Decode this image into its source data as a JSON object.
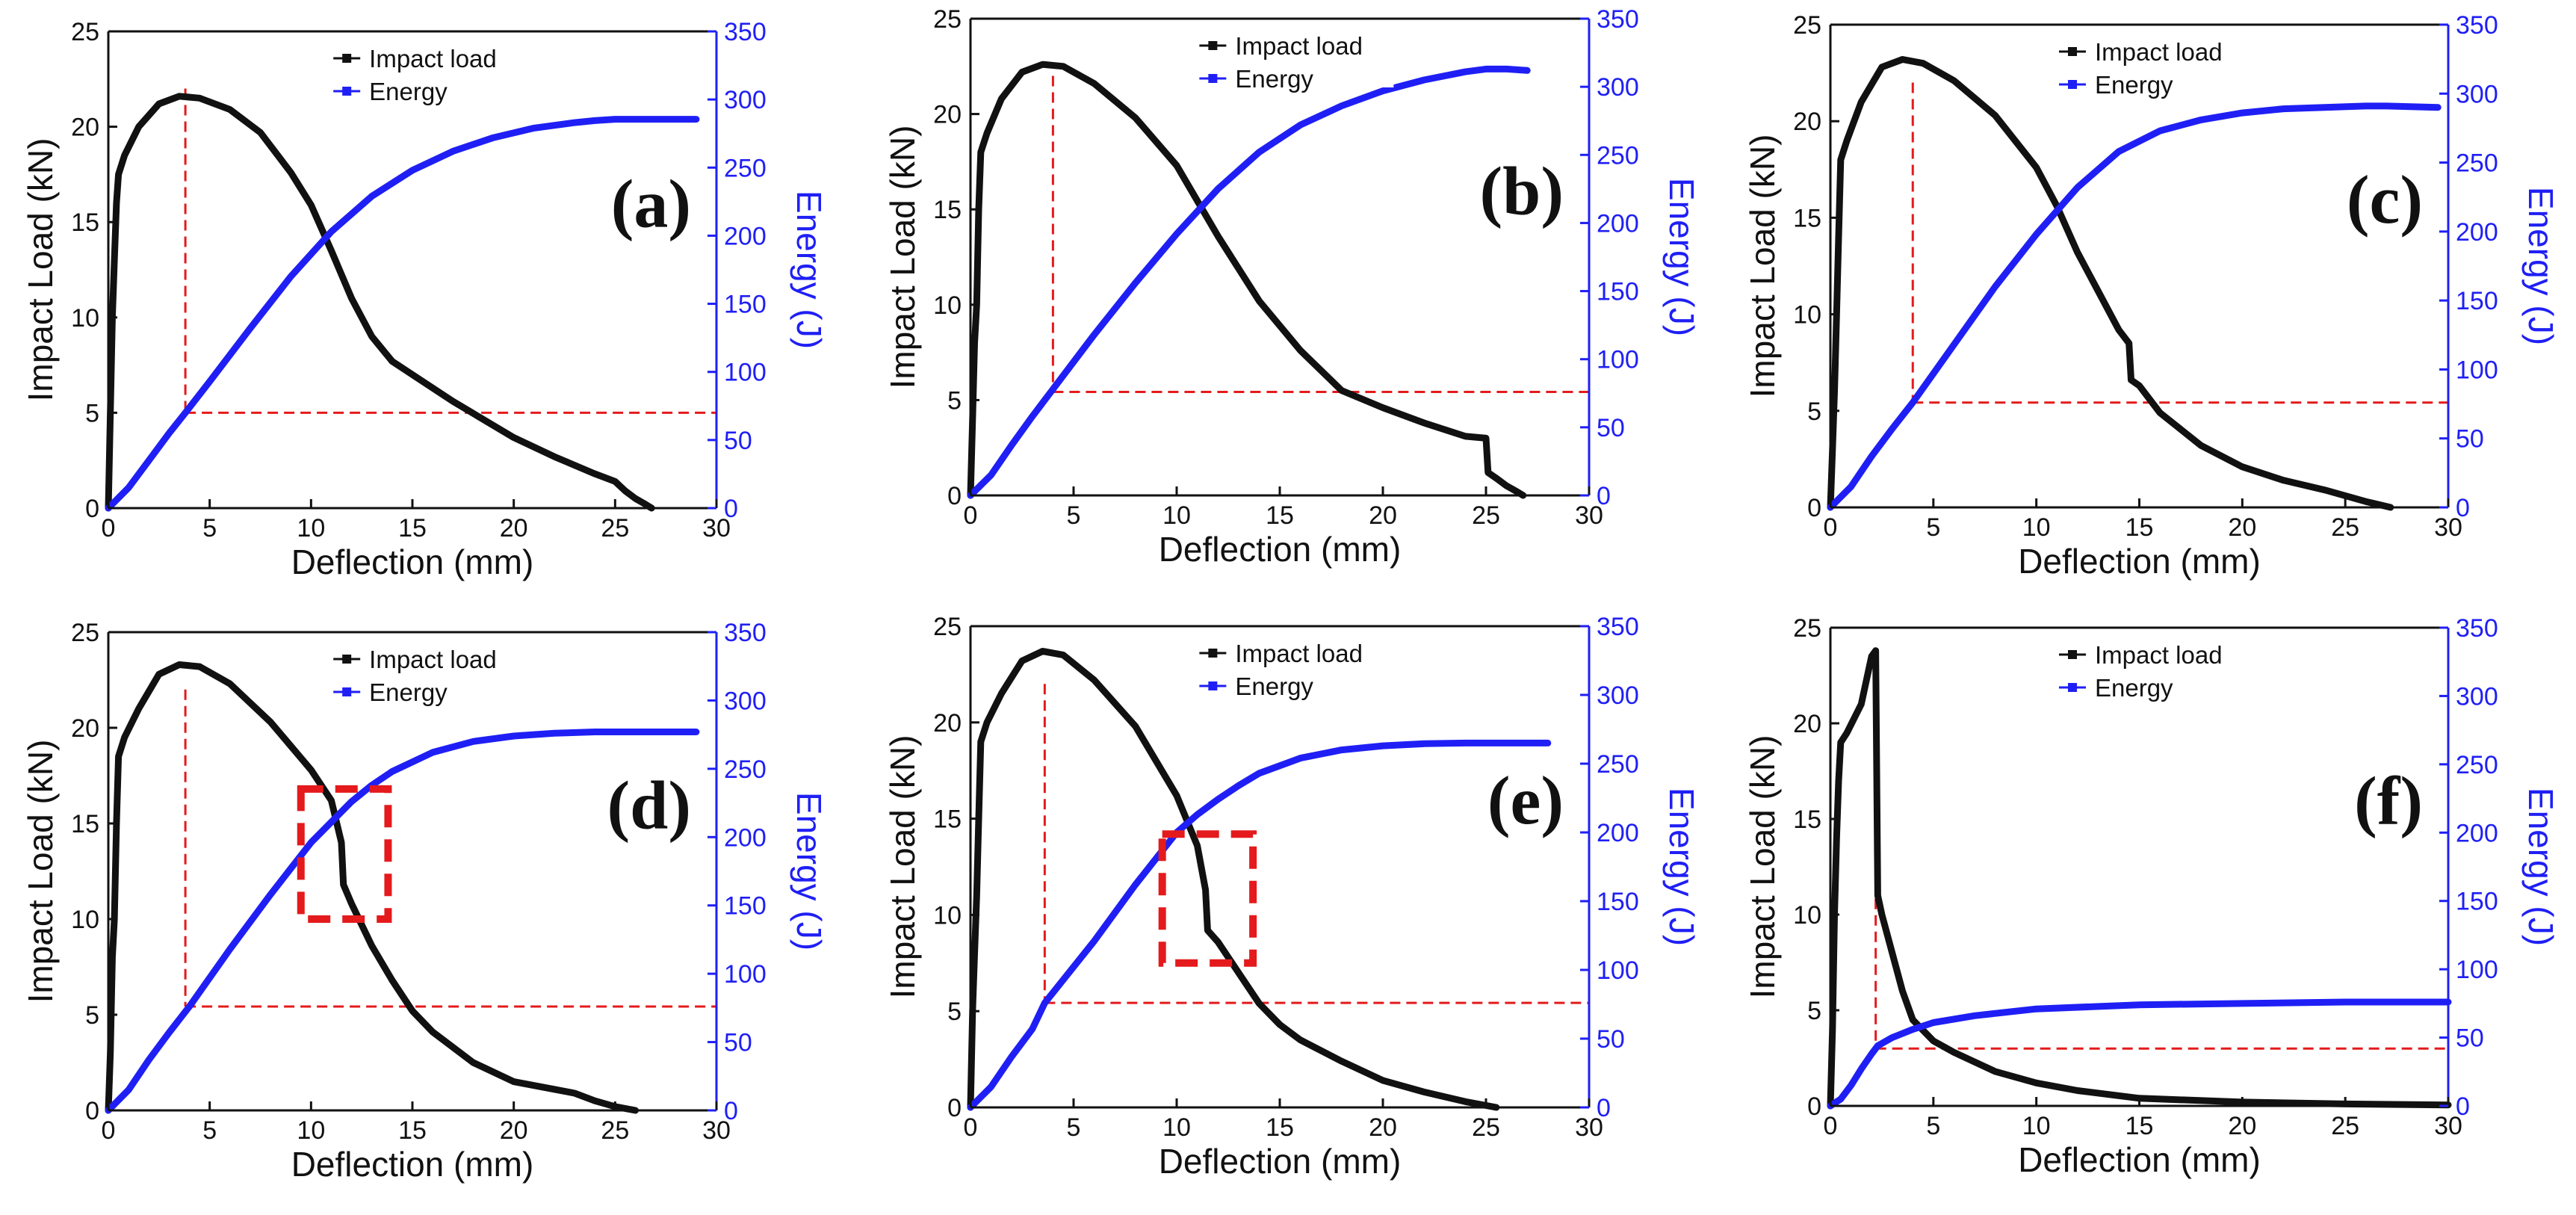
{
  "colors": {
    "load": "#111111",
    "energy": "#1f1ff5",
    "reference": "#e41a1c",
    "axis": "#111111"
  },
  "chart_data": [
    {
      "type": "line",
      "label": "(a)",
      "xlabel": "Deflection (mm)",
      "ylabel": "Impact Load (kN)",
      "y2label": "Energy (J)",
      "xlim": [
        0,
        30
      ],
      "ylim": [
        0,
        25
      ],
      "y2lim": [
        0,
        350
      ],
      "xticks": [
        "0",
        "5",
        "10",
        "15",
        "20",
        "25",
        "30"
      ],
      "yticks": [
        "0",
        "5",
        "10",
        "15",
        "20",
        "25"
      ],
      "y2ticks": [
        "0",
        "50",
        "100",
        "150",
        "200",
        "250",
        "300",
        "350"
      ],
      "legend": [
        "Impact load",
        "Energy"
      ],
      "legend_position": "top-center",
      "series": [
        {
          "name": "Impact load",
          "axis": "left",
          "x": [
            0,
            0.1,
            0.2,
            0.3,
            0.4,
            0.5,
            0.8,
            1.5,
            2.5,
            3.5,
            4.5,
            6,
            7.5,
            9,
            10,
            11,
            12,
            13,
            14,
            15,
            17,
            20,
            22,
            24,
            25,
            25.5,
            26,
            26.5,
            26.8
          ],
          "y": [
            0,
            5,
            10,
            13,
            16,
            17.5,
            18.5,
            20,
            21.2,
            21.6,
            21.5,
            20.9,
            19.7,
            17.6,
            15.9,
            13.5,
            11,
            9,
            7.7,
            7,
            5.6,
            3.7,
            2.7,
            1.8,
            1.4,
            0.9,
            0.5,
            0.2,
            0
          ]
        },
        {
          "name": "Energy",
          "axis": "right",
          "x": [
            0,
            1,
            2,
            3,
            3.8,
            5,
            7,
            9,
            11,
            13,
            15,
            17,
            19,
            21,
            23,
            24,
            25,
            25.5,
            29
          ],
          "y": [
            0,
            15,
            35,
            55,
            70,
            93,
            132,
            170,
            203,
            229,
            248,
            262,
            272,
            279,
            283,
            284.5,
            285.5,
            285.5,
            285.5
          ]
        }
      ],
      "reference_lines": {
        "x": 3.8,
        "y_energy": 70
      }
    },
    {
      "type": "line",
      "label": "(b)",
      "xlabel": "Deflection (mm)",
      "ylabel": "Impact Load (kN)",
      "y2label": "Energy (J)",
      "xlim": [
        0,
        30
      ],
      "ylim": [
        0,
        25
      ],
      "y2lim": [
        0,
        350
      ],
      "xticks": [
        "0",
        "5",
        "10",
        "15",
        "20",
        "25",
        "30"
      ],
      "yticks": [
        "0",
        "5",
        "10",
        "15",
        "20",
        "25"
      ],
      "y2ticks": [
        "0",
        "50",
        "100",
        "150",
        "200",
        "250",
        "300",
        "350"
      ],
      "legend": [
        "Impact load",
        "Energy"
      ],
      "legend_position": "top-center",
      "series": [
        {
          "name": "Impact load",
          "axis": "left",
          "x": [
            0,
            0.1,
            0.2,
            0.3,
            0.4,
            0.5,
            0.8,
            1.5,
            2.5,
            3.5,
            4.5,
            6,
            8,
            10,
            12,
            14,
            16,
            18,
            20,
            22,
            24,
            25,
            25.1,
            25.5,
            26,
            26.5,
            26.8
          ],
          "y": [
            0,
            4,
            8,
            10,
            15,
            18,
            19,
            20.8,
            22.2,
            22.6,
            22.5,
            21.6,
            19.8,
            17.3,
            13.6,
            10.2,
            7.6,
            5.5,
            4.6,
            3.8,
            3.1,
            3.0,
            1.2,
            0.9,
            0.5,
            0.2,
            0
          ]
        },
        {
          "name": "Energy",
          "axis": "right",
          "x": [
            0,
            1,
            2,
            3,
            4,
            6,
            8,
            10,
            12,
            14,
            16,
            18,
            20,
            22,
            24,
            25,
            26,
            27
          ],
          "y": [
            0,
            15,
            37,
            58,
            78,
            118,
            156,
            192,
            225,
            252,
            272,
            286,
            297,
            305,
            311,
            313,
            313,
            312
          ]
        }
      ],
      "reference_lines": {
        "x": 4,
        "y_energy": 76
      }
    },
    {
      "type": "line",
      "label": "(c)",
      "xlabel": "Deflection (mm)",
      "ylabel": "Impact Load (kN)",
      "y2label": "Energy (J)",
      "xlim": [
        0,
        30
      ],
      "ylim": [
        0,
        25
      ],
      "y2lim": [
        0,
        350
      ],
      "xticks": [
        "0",
        "5",
        "10",
        "15",
        "20",
        "25",
        "30"
      ],
      "yticks": [
        "0",
        "5",
        "10",
        "15",
        "20",
        "25"
      ],
      "y2ticks": [
        "0",
        "50",
        "100",
        "150",
        "200",
        "250",
        "300",
        "350"
      ],
      "legend": [
        "Impact load",
        "Energy"
      ],
      "legend_position": "top-center",
      "series": [
        {
          "name": "Impact load",
          "axis": "left",
          "x": [
            0,
            0.1,
            0.2,
            0.3,
            0.4,
            0.5,
            0.8,
            1.5,
            2.5,
            3.5,
            4.5,
            6,
            8,
            10,
            11,
            12,
            13,
            14,
            14.5,
            14.6,
            15,
            16,
            18,
            20,
            22,
            24,
            26,
            27.2
          ],
          "y": [
            0,
            3,
            6,
            10,
            14,
            18,
            19,
            21,
            22.8,
            23.2,
            23,
            22.1,
            20.3,
            17.6,
            15.6,
            13.2,
            11.2,
            9.2,
            8.5,
            6.6,
            6.3,
            4.9,
            3.2,
            2.1,
            1.4,
            0.9,
            0.3,
            0
          ]
        },
        {
          "name": "Energy",
          "axis": "right",
          "x": [
            0,
            1,
            2,
            3,
            4,
            6,
            8,
            10,
            12,
            14,
            16,
            18,
            20,
            22,
            24,
            26,
            27,
            29.5
          ],
          "y": [
            0,
            15,
            37,
            57,
            76,
            118,
            160,
            198,
            232,
            258,
            273,
            281,
            286,
            289,
            290,
            291,
            291,
            290
          ]
        }
      ],
      "reference_lines": {
        "x": 4,
        "y_energy": 76
      }
    },
    {
      "type": "line",
      "label": "(d)",
      "xlabel": "Deflection (mm)",
      "ylabel": "Impact Load (kN)",
      "y2label": "Energy (J)",
      "xlim": [
        0,
        30
      ],
      "ylim": [
        0,
        25
      ],
      "y2lim": [
        0,
        350
      ],
      "xticks": [
        "0",
        "5",
        "10",
        "15",
        "20",
        "25",
        "30"
      ],
      "yticks": [
        "0",
        "5",
        "10",
        "15",
        "20",
        "25"
      ],
      "y2ticks": [
        "0",
        "50",
        "100",
        "150",
        "200",
        "250",
        "300",
        "350"
      ],
      "legend": [
        "Impact load",
        "Energy"
      ],
      "legend_position": "top-center",
      "series": [
        {
          "name": "Impact load",
          "axis": "left",
          "x": [
            0,
            0.1,
            0.2,
            0.3,
            0.4,
            0.5,
            0.8,
            1.5,
            2.5,
            3.5,
            4.5,
            6,
            8,
            10,
            11,
            11.5,
            11.6,
            12,
            13,
            14,
            15,
            16,
            18,
            20,
            22,
            23,
            24,
            25,
            26
          ],
          "y": [
            0,
            3,
            8,
            10,
            15,
            18.5,
            19.5,
            21,
            22.8,
            23.3,
            23.2,
            22.3,
            20.3,
            17.8,
            16.2,
            14,
            11.8,
            10.8,
            8.6,
            6.8,
            5.2,
            4.1,
            2.5,
            1.5,
            1.1,
            0.9,
            0.5,
            0.2,
            0
          ]
        },
        {
          "name": "Energy",
          "axis": "right",
          "x": [
            0,
            1,
            2,
            3,
            4,
            6,
            8,
            10,
            12,
            13,
            14,
            16,
            18,
            20,
            22,
            24,
            26,
            29
          ],
          "y": [
            0,
            15,
            37,
            57,
            76,
            118,
            158,
            196,
            226,
            238,
            248,
            262,
            270,
            274,
            276,
            277,
            277,
            277
          ]
        }
      ],
      "reference_lines": {
        "x": 3.8,
        "y_energy": 76
      },
      "highlight_box": {
        "x": [
          9.5,
          13.8
        ],
        "y": [
          10,
          16.8
        ]
      }
    },
    {
      "type": "line",
      "label": "(e)",
      "xlabel": "Deflection (mm)",
      "ylabel": "Impact Load (kN)",
      "y2label": "Energy (J)",
      "xlim": [
        0,
        30
      ],
      "ylim": [
        0,
        25
      ],
      "y2lim": [
        0,
        350
      ],
      "xticks": [
        "0",
        "5",
        "10",
        "15",
        "20",
        "25",
        "30"
      ],
      "yticks": [
        "0",
        "5",
        "10",
        "15",
        "20",
        "25"
      ],
      "y2ticks": [
        "0",
        "50",
        "100",
        "150",
        "200",
        "250",
        "300",
        "350"
      ],
      "legend": [
        "Impact load",
        "Energy"
      ],
      "legend_position": "top-center",
      "series": [
        {
          "name": "Impact load",
          "axis": "left",
          "x": [
            0,
            0.1,
            0.2,
            0.3,
            0.4,
            0.5,
            0.8,
            1.5,
            2.5,
            3.5,
            4.5,
            6,
            8,
            10,
            11,
            11.4,
            11.5,
            12,
            13,
            14,
            15,
            16,
            18,
            20,
            22,
            24,
            25.5
          ],
          "y": [
            0,
            5,
            8,
            11,
            15,
            19,
            20,
            21.5,
            23.2,
            23.7,
            23.5,
            22.2,
            19.8,
            16.2,
            13.6,
            11.3,
            9.2,
            8.6,
            7,
            5.4,
            4.3,
            3.5,
            2.4,
            1.4,
            0.8,
            0.3,
            0
          ]
        },
        {
          "name": "Energy",
          "axis": "right",
          "x": [
            0,
            1,
            2,
            3,
            3.6,
            6,
            8,
            10,
            11,
            12,
            13,
            14,
            16,
            18,
            20,
            22,
            24,
            26,
            28
          ],
          "y": [
            0,
            15,
            37,
            57,
            76,
            121,
            162,
            200,
            213,
            224,
            234,
            243,
            254,
            260,
            263,
            264.5,
            265,
            265,
            265
          ]
        }
      ],
      "reference_lines": {
        "x": 3.6,
        "y_energy": 76
      },
      "highlight_box": {
        "x": [
          9.3,
          13.7
        ],
        "y": [
          7.5,
          14.2
        ]
      }
    },
    {
      "type": "line",
      "label": "(f)",
      "xlabel": "Deflection (mm)",
      "ylabel": "Impact Load (kN)",
      "y2label": "Energy (J)",
      "xlim": [
        0,
        30
      ],
      "ylim": [
        0,
        25
      ],
      "y2lim": [
        0,
        350
      ],
      "xticks": [
        "0",
        "5",
        "10",
        "15",
        "20",
        "25",
        "30"
      ],
      "yticks": [
        "0",
        "5",
        "10",
        "15",
        "20",
        "25"
      ],
      "y2ticks": [
        "0",
        "50",
        "100",
        "150",
        "200",
        "250",
        "300",
        "350"
      ],
      "legend": [
        "Impact load",
        "Energy"
      ],
      "legend_position": "top-center",
      "series": [
        {
          "name": "Impact load",
          "axis": "left",
          "x": [
            0,
            0.1,
            0.2,
            0.3,
            0.4,
            0.5,
            0.8,
            1.5,
            2,
            2.2,
            2.3,
            2.5,
            3,
            3.5,
            4,
            5,
            6,
            8,
            10,
            12,
            15,
            20,
            25,
            30
          ],
          "y": [
            0,
            4,
            10,
            14,
            17,
            19,
            19.5,
            21,
            23.5,
            23.8,
            11,
            10,
            8,
            6,
            4.5,
            3.4,
            2.8,
            1.8,
            1.2,
            0.8,
            0.4,
            0.2,
            0.1,
            0.05
          ]
        },
        {
          "name": "Energy",
          "axis": "right",
          "x": [
            0,
            0.5,
            1,
            1.5,
            2,
            2.3,
            3,
            4,
            5,
            7,
            10,
            15,
            20,
            25,
            30
          ],
          "y": [
            0,
            5,
            15,
            27,
            38,
            44,
            50,
            56,
            61,
            66,
            71,
            74,
            75,
            76,
            76
          ]
        }
      ],
      "reference_lines": {
        "x": 2.2,
        "y_energy": 42
      }
    }
  ]
}
